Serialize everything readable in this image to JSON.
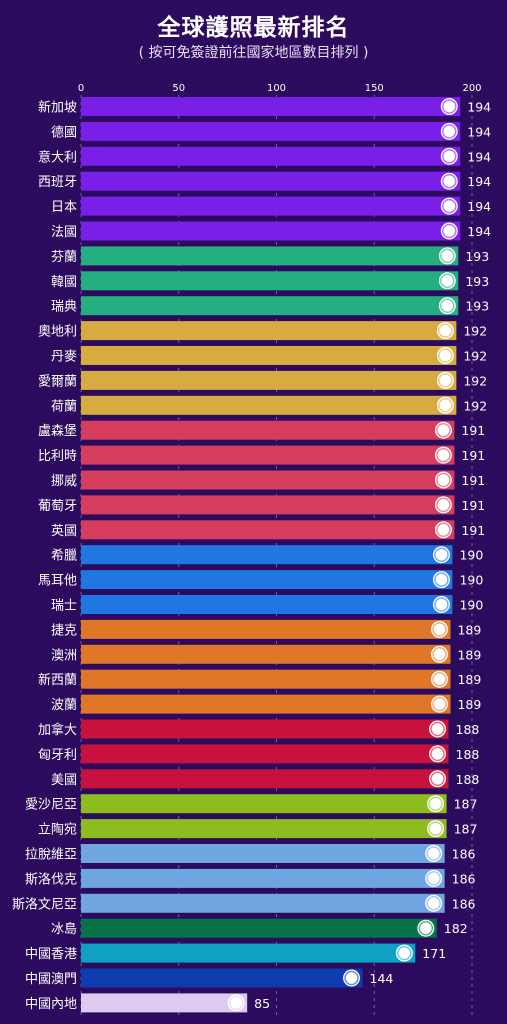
{
  "title": "全球護照最新排名",
  "subtitle": "( 按可免簽證前往國家地區數目排列 )",
  "chart_data": {
    "type": "bar",
    "orientation": "horizontal",
    "xlim": [
      0,
      200
    ],
    "x_ticks": [
      "0",
      "50",
      "100",
      "150",
      "200"
    ],
    "grid": "vertical dashed",
    "categories": [
      "新加坡",
      "德國",
      "意大利",
      "西班牙",
      "日本",
      "法國",
      "芬蘭",
      "韓國",
      "瑞典",
      "奧地利",
      "丹麥",
      "愛爾蘭",
      "荷蘭",
      "盧森堡",
      "比利時",
      "挪威",
      "葡萄牙",
      "英國",
      "希臘",
      "馬耳他",
      "瑞士",
      "捷克",
      "澳洲",
      "新西蘭",
      "波蘭",
      "加拿大",
      "匈牙利",
      "美國",
      "愛沙尼亞",
      "立陶宛",
      "拉脫維亞",
      "斯洛伐克",
      "斯洛文尼亞",
      "冰島",
      "中國香港",
      "中國澳門",
      "中國內地"
    ],
    "values": [
      194,
      194,
      194,
      194,
      194,
      194,
      193,
      193,
      193,
      192,
      192,
      192,
      192,
      191,
      191,
      191,
      191,
      191,
      190,
      190,
      190,
      189,
      189,
      189,
      189,
      188,
      188,
      188,
      187,
      187,
      186,
      186,
      186,
      182,
      171,
      144,
      85
    ],
    "colors": [
      "#7a1fe8",
      "#7a1fe8",
      "#7a1fe8",
      "#7a1fe8",
      "#7a1fe8",
      "#7a1fe8",
      "#25ae80",
      "#25ae80",
      "#25ae80",
      "#d6ac40",
      "#d6ac40",
      "#d6ac40",
      "#d6ac40",
      "#d63d5d",
      "#d63d5d",
      "#d63d5d",
      "#d63d5d",
      "#d63d5d",
      "#2077e2",
      "#2077e2",
      "#2077e2",
      "#df7726",
      "#df7726",
      "#df7726",
      "#df7726",
      "#c8123d",
      "#c8123d",
      "#c8123d",
      "#8dbc1f",
      "#8dbc1f",
      "#6fa5e0",
      "#6fa5e0",
      "#6fa5e0",
      "#087249",
      "#0ea1c1",
      "#0e3bad",
      "#ddcaf0"
    ],
    "flag_icons": [
      "singapore-flag",
      "germany-flag",
      "italy-flag",
      "spain-flag",
      "japan-flag",
      "france-flag",
      "finland-flag",
      "south-korea-flag",
      "sweden-flag",
      "austria-flag",
      "denmark-flag",
      "ireland-flag",
      "netherlands-flag",
      "luxembourg-flag",
      "belgium-flag",
      "norway-flag",
      "portugal-flag",
      "uk-flag",
      "greece-flag",
      "malta-flag",
      "switzerland-flag",
      "czech-flag",
      "australia-flag",
      "new-zealand-flag",
      "poland-flag",
      "canada-flag",
      "hungary-flag",
      "usa-flag",
      "estonia-flag",
      "lithuania-flag",
      "latvia-flag",
      "slovakia-flag",
      "slovenia-flag",
      "iceland-flag",
      "hong-kong-flag",
      "macau-flag",
      "china-flag"
    ]
  }
}
